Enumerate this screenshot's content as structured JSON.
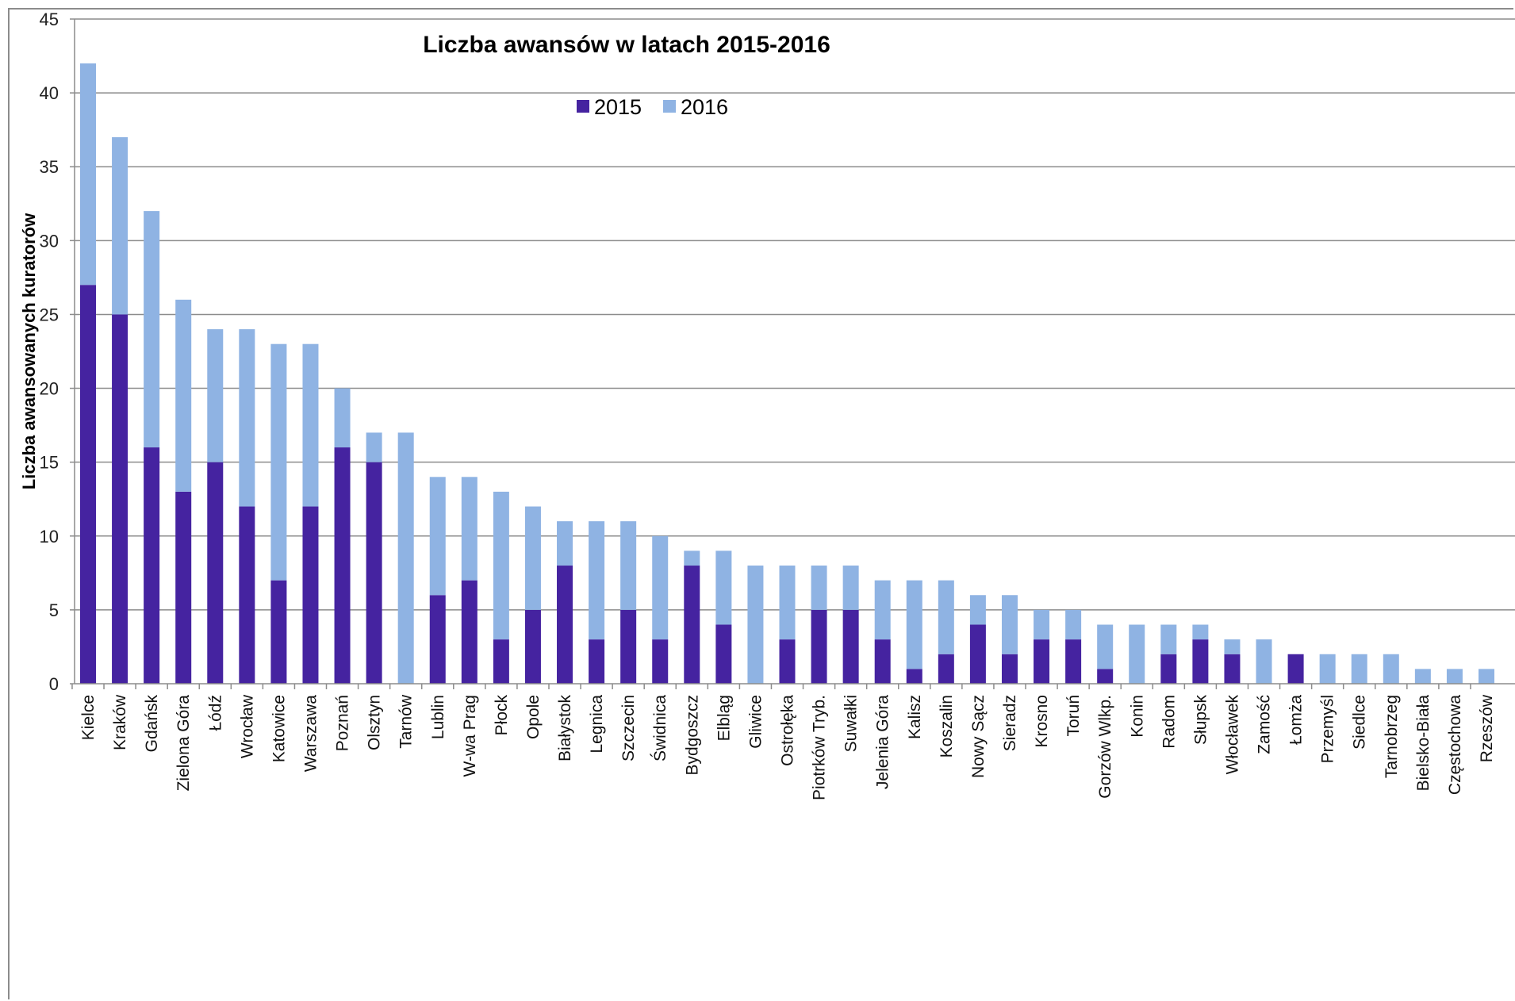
{
  "chart_data": {
    "type": "bar",
    "stacked": true,
    "title": "Liczba awansów w latach 2015-2016",
    "xlabel": "",
    "ylabel": "Liczba awansowanych kuratorów",
    "ylim": [
      0,
      45
    ],
    "yticks": [
      0,
      5,
      10,
      15,
      20,
      25,
      30,
      35,
      40,
      45
    ],
    "grid": true,
    "legend_position": "top-center",
    "categories": [
      "Kielce",
      "Kraków",
      "Gdańsk",
      "Zielona Góra",
      "Łódź",
      "Wrocław",
      "Katowice",
      "Warszawa",
      "Poznań",
      "Olsztyn",
      "Tarnów",
      "Lublin",
      "W-wa Prag",
      "Płock",
      "Opole",
      "Białystok",
      "Legnica",
      "Szczecin",
      "Świdnica",
      "Bydgoszcz",
      "Elbląg",
      "Gliwice",
      "Ostrołęka",
      "Piotrków Tryb.",
      "Suwałki",
      "Jelenia Góra",
      "Kalisz",
      "Koszalin",
      "Nowy Sącz",
      "Sieradz",
      "Krosno",
      "Toruń",
      "Gorzów Wlkp.",
      "Konin",
      "Radom",
      "Słupsk",
      "Włocławek",
      "Zamość",
      "Łomża",
      "Przemyśl",
      "Siedlce",
      "Tarnobrzeg",
      "Bielsko-Biała",
      "Częstochowa",
      "Rzeszów"
    ],
    "series": [
      {
        "name": "2015",
        "color": "#4523a0",
        "values": [
          27,
          25,
          16,
          13,
          15,
          12,
          7,
          12,
          16,
          15,
          0,
          6,
          7,
          3,
          5,
          8,
          3,
          5,
          3,
          8,
          4,
          0,
          3,
          5,
          5,
          3,
          1,
          2,
          4,
          2,
          3,
          3,
          1,
          0,
          2,
          3,
          2,
          0,
          2,
          0,
          0,
          0,
          0,
          0,
          0
        ]
      },
      {
        "name": "2016",
        "color": "#8fb3e3",
        "values": [
          15,
          12,
          16,
          13,
          9,
          12,
          16,
          11,
          4,
          2,
          17,
          8,
          7,
          10,
          7,
          3,
          8,
          6,
          7,
          1,
          5,
          8,
          5,
          3,
          3,
          4,
          6,
          5,
          2,
          4,
          2,
          2,
          3,
          4,
          2,
          1,
          1,
          3,
          0,
          2,
          2,
          2,
          1,
          1,
          1
        ]
      }
    ]
  }
}
